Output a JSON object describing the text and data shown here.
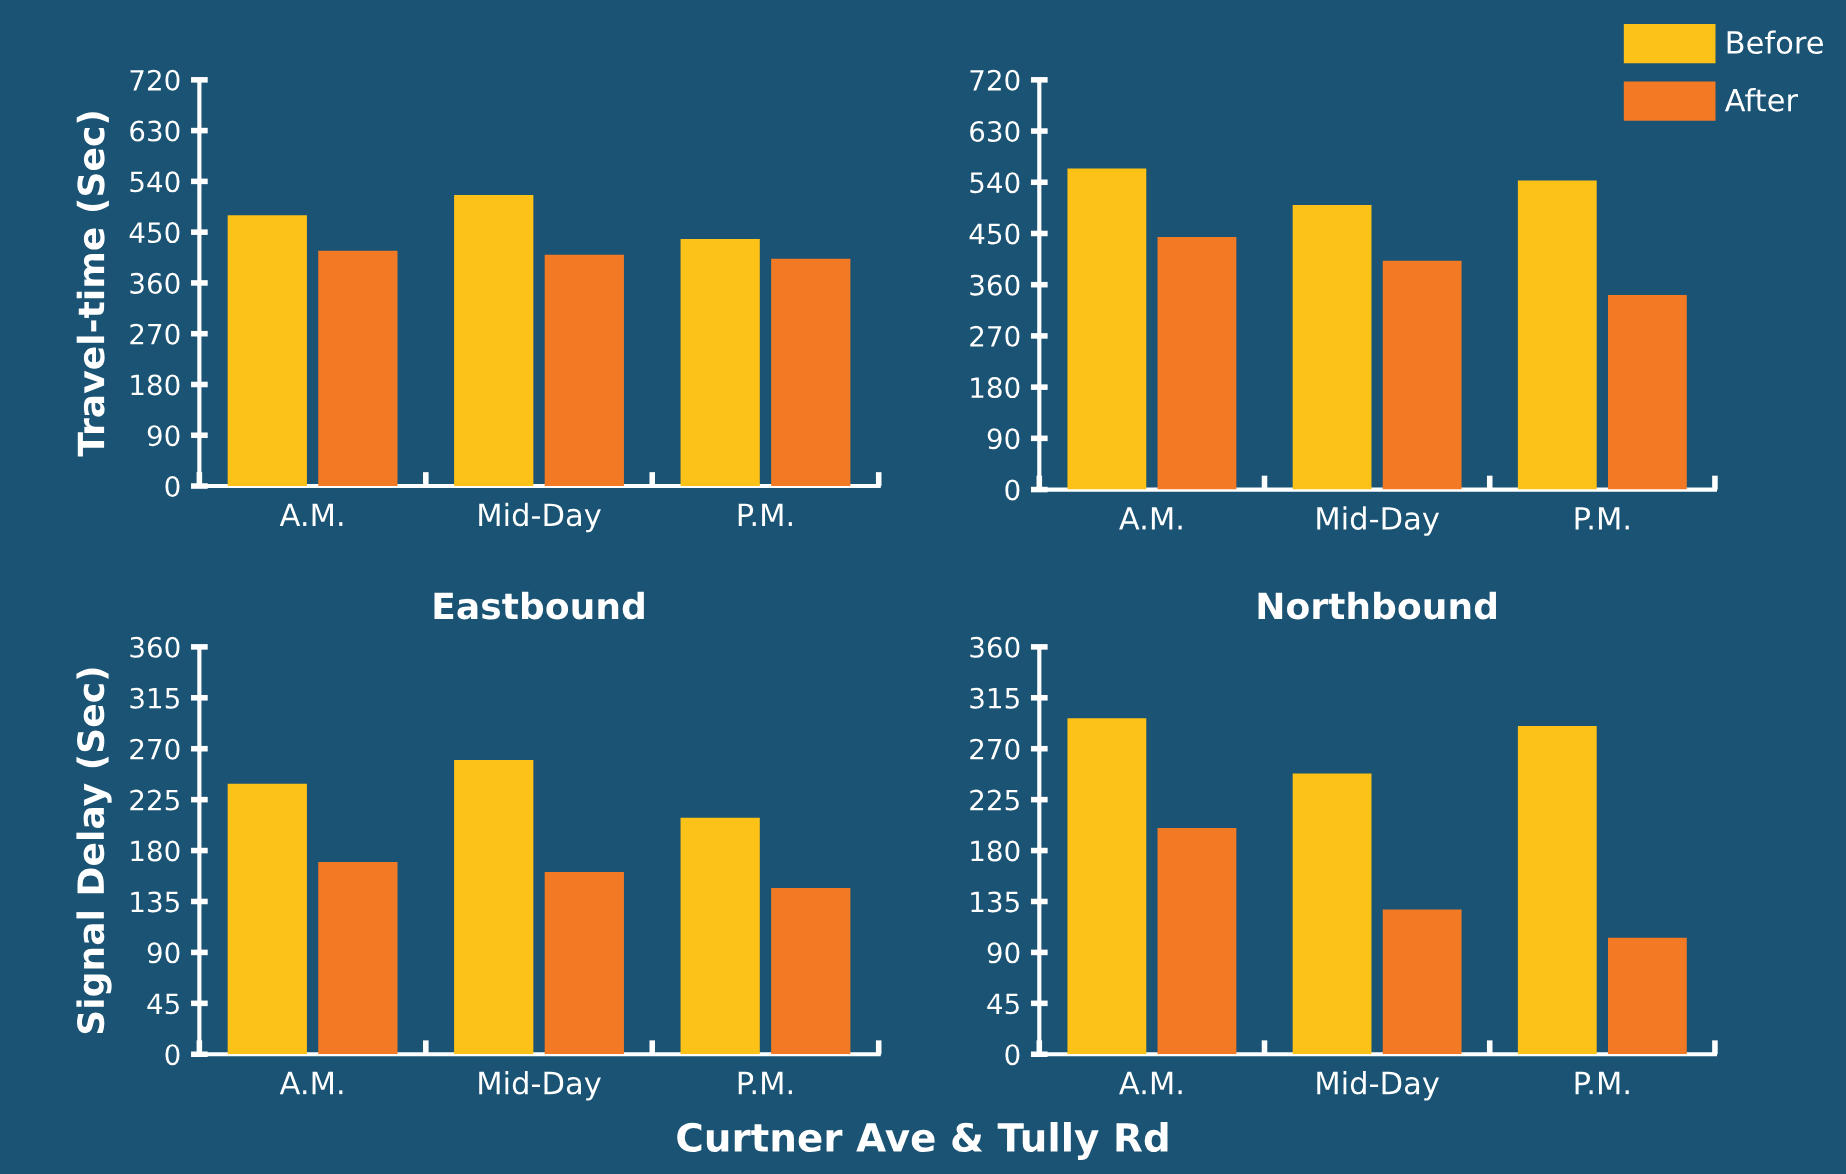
{
  "chart_data": [
    {
      "type": "bar",
      "categories": [
        "A.M.",
        "Mid-Day",
        "P.M."
      ],
      "ylabel": "Travel-time (Sec)",
      "ylim": [
        0,
        720
      ],
      "yticks": [
        0,
        90,
        180,
        270,
        360,
        450,
        540,
        630,
        720
      ],
      "grid": false,
      "series": [
        {
          "color": "#fdc217",
          "values": [
            480,
            516,
            438
          ]
        },
        {
          "color": "#f37a24",
          "values": [
            417,
            410,
            403
          ]
        }
      ]
    },
    {
      "type": "bar",
      "categories": [
        "A.M.",
        "Mid-Day",
        "P.M."
      ],
      "ylim": [
        0,
        720
      ],
      "yticks": [
        0,
        90,
        180,
        270,
        360,
        450,
        540,
        630,
        720
      ],
      "grid": false,
      "legend": "top right",
      "series": [
        {
          "name": "Before",
          "color": "#fdc217",
          "values": [
            564,
            500,
            543
          ]
        },
        {
          "name": "After",
          "color": "#f37a24",
          "values": [
            444,
            402,
            342
          ]
        }
      ]
    },
    {
      "type": "bar",
      "categories": [
        "A.M.",
        "Mid-Day",
        "P.M."
      ],
      "title": "Eastbound",
      "ylabel": "Signal Delay (Sec)",
      "ylim": [
        0,
        360
      ],
      "yticks": [
        0,
        45,
        90,
        135,
        180,
        225,
        270,
        315,
        360
      ],
      "grid": false,
      "annotations": [
        "Curtner Ave & Tully Rd"
      ],
      "series": [
        {
          "color": "#fdc217",
          "values": [
            239,
            260,
            209
          ]
        },
        {
          "color": "#f37a24",
          "values": [
            170,
            161,
            147
          ]
        }
      ]
    },
    {
      "type": "bar",
      "categories": [
        "A.M.",
        "Mid-Day",
        "P.M."
      ],
      "title": "Northbound",
      "ylim": [
        0,
        360
      ],
      "yticks": [
        0,
        45,
        90,
        135,
        180,
        225,
        270,
        315,
        360
      ],
      "grid": false,
      "series": [
        {
          "color": "#fdc217",
          "values": [
            297,
            248,
            290
          ]
        },
        {
          "color": "#f37a24",
          "values": [
            200,
            128,
            103
          ]
        }
      ]
    }
  ]
}
